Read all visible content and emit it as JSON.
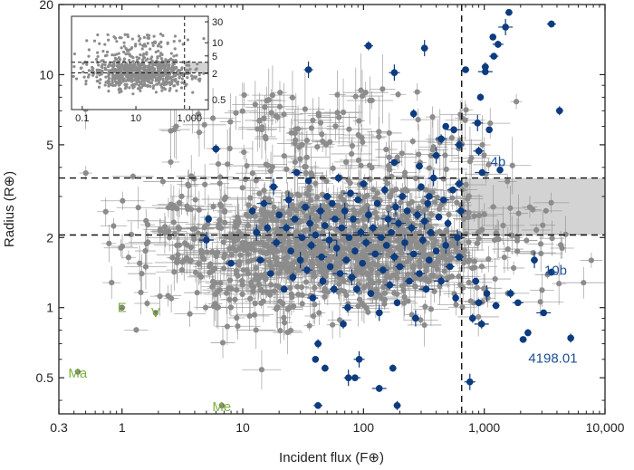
{
  "chart_data": {
    "type": "scatter",
    "title": "",
    "xlabel": "Incident flux (F⊕)",
    "ylabel": "Radius (R⊕)",
    "xscale": "log",
    "yscale": "log",
    "xlim": [
      0.3,
      10000
    ],
    "ylim": [
      0.35,
      20
    ],
    "xticks": [
      {
        "v": 0.3,
        "label": "0.3"
      },
      {
        "v": 1,
        "label": "1"
      },
      {
        "v": 10,
        "label": "10"
      },
      {
        "v": 100,
        "label": "100"
      },
      {
        "v": 1000,
        "label": "1,000"
      },
      {
        "v": 10000,
        "label": "10,000"
      }
    ],
    "yticks": [
      {
        "v": 0.5,
        "label": "0.5"
      },
      {
        "v": 1,
        "label": "1"
      },
      {
        "v": 2,
        "label": "2"
      },
      {
        "v": 5,
        "label": "5"
      },
      {
        "v": 10,
        "label": "10"
      },
      {
        "v": 20,
        "label": "20"
      }
    ],
    "colors": {
      "background_sample": "#8c8c8c",
      "highlighted": "#0d3b7f",
      "solar_system": "#7fb23c",
      "gap_region": "#d3d3d3"
    },
    "guides": {
      "horizontal_dashed_radii": [
        2.05,
        3.6
      ],
      "vertical_dashed_flux": 650,
      "shaded_region": {
        "x": [
          650,
          10000
        ],
        "y": [
          2.05,
          3.6
        ]
      }
    },
    "series": [
      {
        "role": "blue",
        "points": [
          [
            5.0,
            1.95
          ],
          [
            5.2,
            2.4
          ],
          [
            6.0,
            4.8
          ],
          [
            8.0,
            1.55
          ],
          [
            12,
            2.6
          ],
          [
            13,
            2.1
          ],
          [
            14,
            1.6
          ],
          [
            15,
            2.8
          ],
          [
            16,
            2.2
          ],
          [
            17,
            1.4
          ],
          [
            18,
            3.3
          ],
          [
            19,
            1.9
          ],
          [
            20,
            2.5
          ],
          [
            22,
            1.2
          ],
          [
            23,
            2.2
          ],
          [
            24,
            2.9
          ],
          [
            25,
            1.75
          ],
          [
            26,
            1.35
          ],
          [
            27,
            2.4
          ],
          [
            28,
            3.8
          ],
          [
            30,
            1.6
          ],
          [
            31,
            2.0
          ],
          [
            33,
            2.7
          ],
          [
            34,
            1.45
          ],
          [
            35,
            3.5
          ],
          [
            36,
            2.3
          ],
          [
            37,
            1.85
          ],
          [
            38,
            1.1
          ],
          [
            40,
            2.05
          ],
          [
            42,
            0.7
          ],
          [
            44,
            2.6
          ],
          [
            45,
            1.65
          ],
          [
            46,
            1.3
          ],
          [
            48,
            2.25
          ],
          [
            50,
            3.0
          ],
          [
            52,
            1.95
          ],
          [
            53,
            1.5
          ],
          [
            55,
            2.8
          ],
          [
            57,
            1.2
          ],
          [
            58,
            2.4
          ],
          [
            60,
            1.8
          ],
          [
            62,
            3.6
          ],
          [
            64,
            1.4
          ],
          [
            66,
            2.2
          ],
          [
            68,
            0.85
          ],
          [
            70,
            2.6
          ],
          [
            72,
            1.6
          ],
          [
            74,
            1.0
          ],
          [
            76,
            2.0
          ],
          [
            78,
            3.1
          ],
          [
            80,
            1.35
          ],
          [
            82,
            2.4
          ],
          [
            85,
            1.75
          ],
          [
            88,
            1.2
          ],
          [
            90,
            2.9
          ],
          [
            92,
            0.6
          ],
          [
            95,
            2.1
          ],
          [
            98,
            1.55
          ],
          [
            100,
            3.4
          ],
          [
            105,
            1.9
          ],
          [
            110,
            2.5
          ],
          [
            115,
            1.15
          ],
          [
            120,
            2.2
          ],
          [
            125,
            1.7
          ],
          [
            130,
            2.8
          ],
          [
            135,
            0.95
          ],
          [
            140,
            2.0
          ],
          [
            145,
            1.45
          ],
          [
            150,
            3.2
          ],
          [
            155,
            1.85
          ],
          [
            160,
            2.4
          ],
          [
            165,
            1.25
          ],
          [
            170,
            2.1
          ],
          [
            175,
            0.55
          ],
          [
            180,
            1.65
          ],
          [
            185,
            2.7
          ],
          [
            190,
            1.05
          ],
          [
            195,
            2.3
          ],
          [
            200,
            1.5
          ],
          [
            210,
            3.0
          ],
          [
            220,
            1.9
          ],
          [
            230,
            2.6
          ],
          [
            240,
            1.3
          ],
          [
            250,
            2.2
          ],
          [
            260,
            1.7
          ],
          [
            270,
            0.9
          ],
          [
            280,
            2.5
          ],
          [
            290,
            1.4
          ],
          [
            300,
            3.3
          ],
          [
            310,
            1.95
          ],
          [
            320,
            2.35
          ],
          [
            330,
            1.2
          ],
          [
            340,
            2.8
          ],
          [
            350,
            1.6
          ],
          [
            360,
            2.1
          ],
          [
            380,
            3.6
          ],
          [
            400,
            1.75
          ],
          [
            420,
            2.45
          ],
          [
            440,
            1.3
          ],
          [
            460,
            2.9
          ],
          [
            480,
            1.85
          ],
          [
            500,
            2.3
          ],
          [
            520,
            1.5
          ],
          [
            550,
            3.2
          ],
          [
            580,
            1.1
          ],
          [
            600,
            2.0
          ],
          [
            620,
            1.65
          ],
          [
            640,
            2.6
          ],
          [
            40,
            0.6
          ],
          [
            48,
            0.55
          ],
          [
            75,
            0.5
          ],
          [
            85,
            0.5
          ],
          [
            135,
            0.45
          ],
          [
            190,
            0.38
          ],
          [
            42,
            0.38
          ],
          [
            760,
            0.48
          ],
          [
            800,
            0.9
          ],
          [
            850,
            1.3
          ],
          [
            900,
            1.05
          ],
          [
            950,
            0.85
          ],
          [
            1050,
            1.15
          ],
          [
            1250,
            1.02
          ],
          [
            1650,
            1.15
          ],
          [
            1900,
            1.05
          ],
          [
            2300,
            0.78
          ],
          [
            2600,
            1.6
          ],
          [
            3100,
            0.95
          ],
          [
            3600,
            1.42
          ],
          [
            5200,
            0.74
          ],
          [
            2100,
            0.73
          ],
          [
            400,
            4.5
          ],
          [
            440,
            5.3
          ],
          [
            480,
            6.0
          ],
          [
            560,
            5.8
          ],
          [
            620,
            5.0
          ],
          [
            880,
            6.2
          ],
          [
            930,
            8.0
          ],
          [
            1020,
            10.8
          ],
          [
            1200,
            12.0
          ],
          [
            1300,
            13.5
          ],
          [
            1500,
            16.0
          ],
          [
            1600,
            18.5
          ],
          [
            3600,
            16.5
          ],
          [
            900,
            4.7
          ],
          [
            1100,
            5.8
          ],
          [
            320,
            13.0
          ],
          [
            110,
            13.3
          ],
          [
            960,
            3.8
          ],
          [
            1350,
            3.9
          ],
          [
            4200,
            7.0
          ],
          [
            35,
            10.5
          ],
          [
            180,
            4.2
          ],
          [
            260,
            6.8
          ],
          [
            700,
            10.5
          ],
          [
            1020,
            10.3
          ],
          [
            180,
            10.2
          ],
          [
            1180,
            14.5
          ],
          [
            290,
            4.05
          ],
          [
            620,
            3.4
          ],
          [
            350,
            3.0
          ]
        ]
      },
      {
        "role": "solar-system",
        "points": [
          [
            0.43,
            0.53
          ],
          [
            1,
            1
          ],
          [
            1.9,
            0.95
          ],
          [
            6.7,
            0.38
          ]
        ]
      }
    ],
    "annotations": [
      {
        "text": "Ma",
        "x": 0.43,
        "y": 0.5,
        "color": "#7fb23c"
      },
      {
        "text": "E",
        "x": 1.0,
        "y": 0.96,
        "color": "#7fb23c"
      },
      {
        "text": "V",
        "x": 1.9,
        "y": 0.91,
        "color": "#7fb23c"
      },
      {
        "text": "Me",
        "x": 6.7,
        "y": 0.36,
        "color": "#7fb23c"
      },
      {
        "text": "4b",
        "x": 1300,
        "y": 4.05,
        "color": "#1d4f91"
      },
      {
        "text": "10b",
        "x": 3900,
        "y": 1.38,
        "color": "#1d4f91"
      },
      {
        "text": "4198.01",
        "x": 3700,
        "y": 0.58,
        "color": "#1d4f91"
      }
    ],
    "inset": {
      "type": "scatter",
      "xlim": [
        0.04,
        5000
      ],
      "ylim": [
        0.3,
        40
      ],
      "xticks": [
        {
          "v": 0.1,
          "label": "0.1"
        },
        {
          "v": 10,
          "label": "10"
        },
        {
          "v": 1000,
          "label": "1,000"
        }
      ],
      "yticks": [
        {
          "v": 0.5,
          "label": "0.5"
        },
        {
          "v": 2,
          "label": "2"
        },
        {
          "v": 5,
          "label": "5"
        },
        {
          "v": 10,
          "label": "10"
        },
        {
          "v": 30,
          "label": "30"
        }
      ],
      "guides": {
        "horizontal_dashed_radii": [
          2.05,
          3.6
        ],
        "vertical_dashed_flux": 650
      }
    }
  }
}
